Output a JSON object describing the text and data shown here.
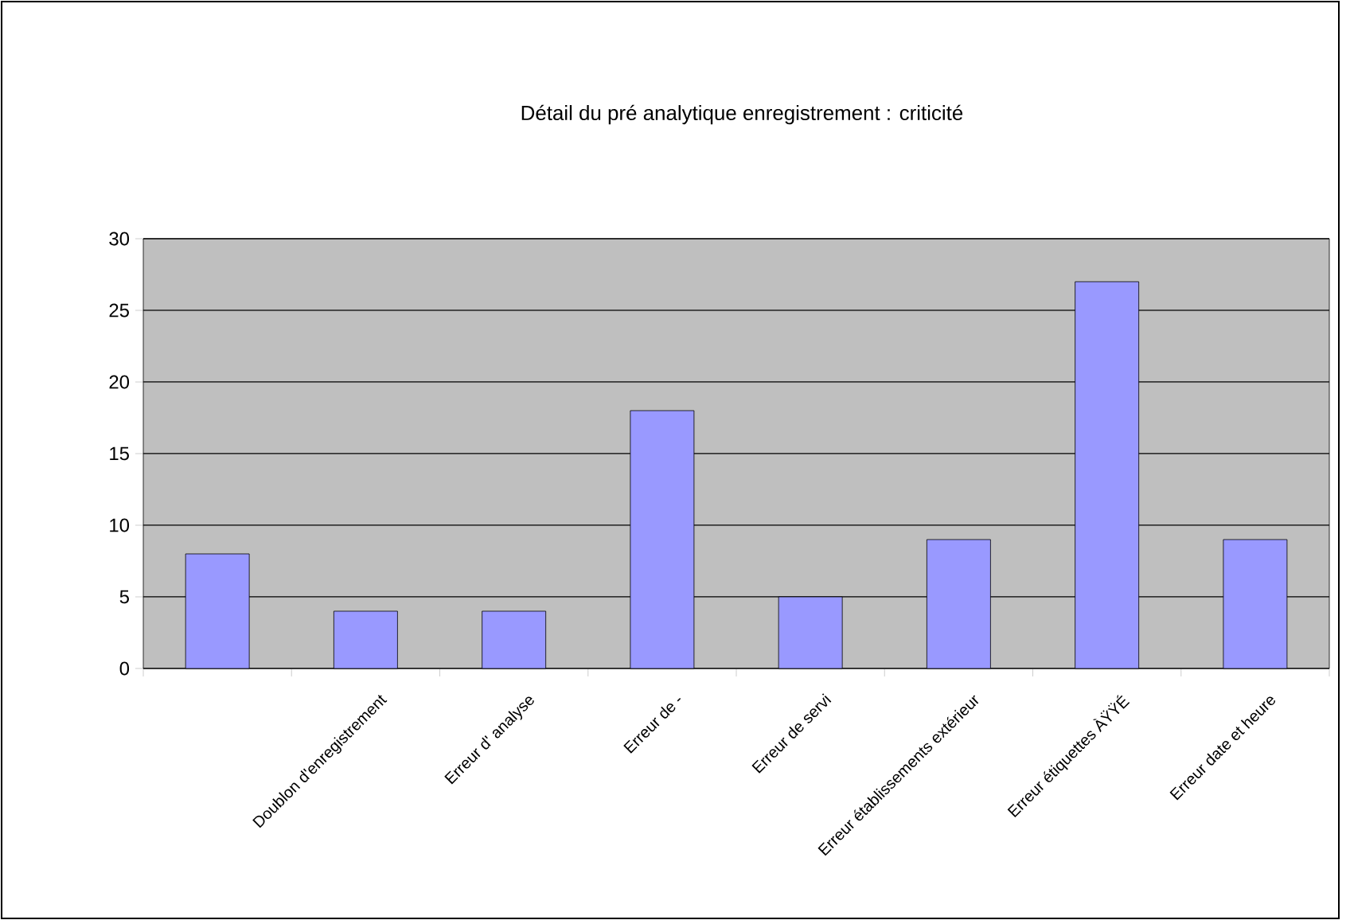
{
  "chart_data": {
    "type": "bar",
    "title": "Détail du pré analytique enregistrement : criticité",
    "categories": [
      null,
      "Doublon d'enregistrement",
      "Erreur d' analyse",
      "Erreur de -",
      "Erreur de servi",
      "Erreur établissements extérieur",
      "Erreur étiquettes ÀŸŸÉ",
      "Erreur date et heure"
    ],
    "values": [
      8,
      4,
      4,
      18,
      5,
      9,
      27,
      9
    ],
    "color": "#9999ff",
    "ylim": [
      0,
      30
    ],
    "yticks": [
      0,
      5,
      10,
      15,
      20,
      25,
      30
    ],
    "grid": "y"
  }
}
